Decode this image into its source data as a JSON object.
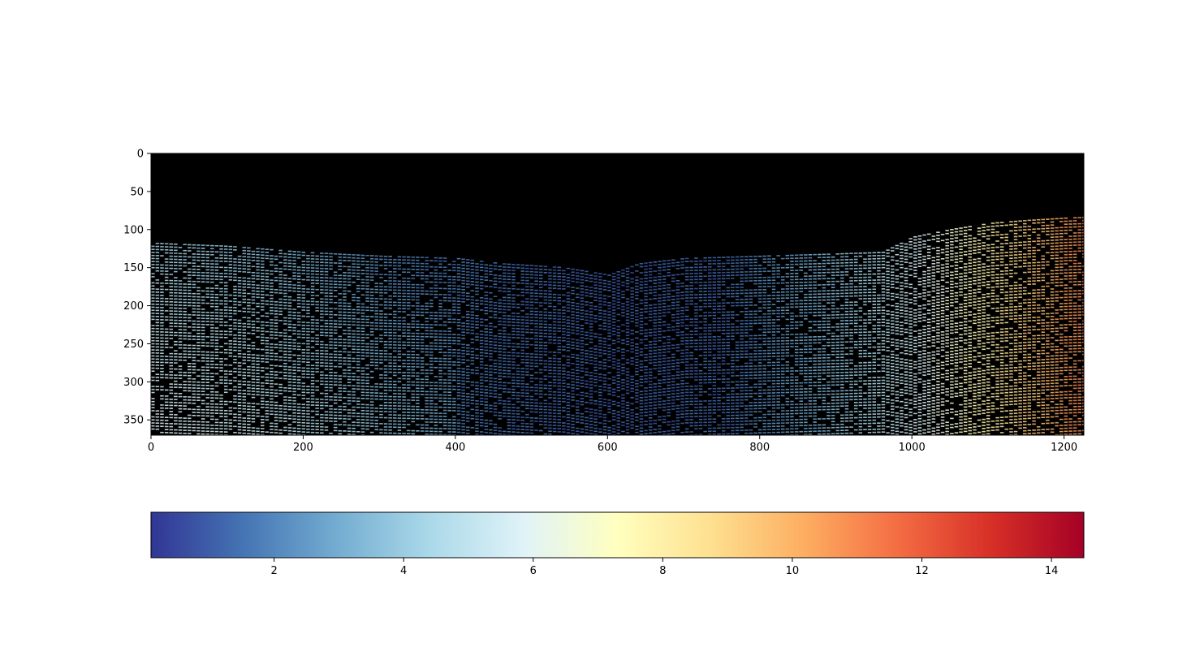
{
  "chart_data": [
    {
      "type": "heatmap",
      "title": "",
      "xlabel": "",
      "ylabel": "",
      "background_color": "#000000",
      "xlim": [
        0,
        1226
      ],
      "ylim": [
        370,
        0
      ],
      "x_ticks": [
        0,
        200,
        400,
        600,
        800,
        1000,
        1200
      ],
      "y_ticks": [
        0,
        50,
        100,
        150,
        200,
        250,
        300,
        350
      ],
      "x_tick_labels": [
        "0",
        "200",
        "400",
        "600",
        "800",
        "1000",
        "1200"
      ],
      "y_tick_labels": [
        "0",
        "50",
        "100",
        "150",
        "200",
        "250",
        "300",
        "350"
      ],
      "colormap": "RdYlBu_r",
      "valid_region_top_y": [
        [
          0,
          118
        ],
        [
          100,
          122
        ],
        [
          200,
          130
        ],
        [
          300,
          135
        ],
        [
          400,
          138
        ],
        [
          460,
          145
        ],
        [
          540,
          150
        ],
        [
          600,
          160
        ],
        [
          640,
          145
        ],
        [
          700,
          138
        ],
        [
          800,
          135
        ],
        [
          900,
          132
        ],
        [
          960,
          130
        ],
        [
          1000,
          110
        ],
        [
          1050,
          100
        ],
        [
          1100,
          92
        ],
        [
          1150,
          88
        ],
        [
          1200,
          85
        ],
        [
          1226,
          84
        ]
      ],
      "value_by_x": [
        [
          0,
          4.8
        ],
        [
          150,
          4.0
        ],
        [
          300,
          2.5
        ],
        [
          450,
          1.4
        ],
        [
          600,
          1.0
        ],
        [
          750,
          1.2
        ],
        [
          900,
          3.5
        ],
        [
          1000,
          5.5
        ],
        [
          1100,
          8.0
        ],
        [
          1200,
          10.5
        ],
        [
          1226,
          11.0
        ]
      ]
    },
    {
      "type": "colorbar",
      "orientation": "horizontal",
      "range": [
        0.1,
        14.5
      ],
      "ticks": [
        2,
        4,
        6,
        8,
        10,
        12,
        14
      ],
      "tick_labels": [
        "2",
        "4",
        "6",
        "8",
        "10",
        "12",
        "14"
      ],
      "colors": [
        "#313695",
        "#4575b4",
        "#74add1",
        "#abd9e9",
        "#e0f3f8",
        "#ffffbf",
        "#fee090",
        "#fdae61",
        "#f46d43",
        "#d73027",
        "#a50026"
      ]
    }
  ]
}
